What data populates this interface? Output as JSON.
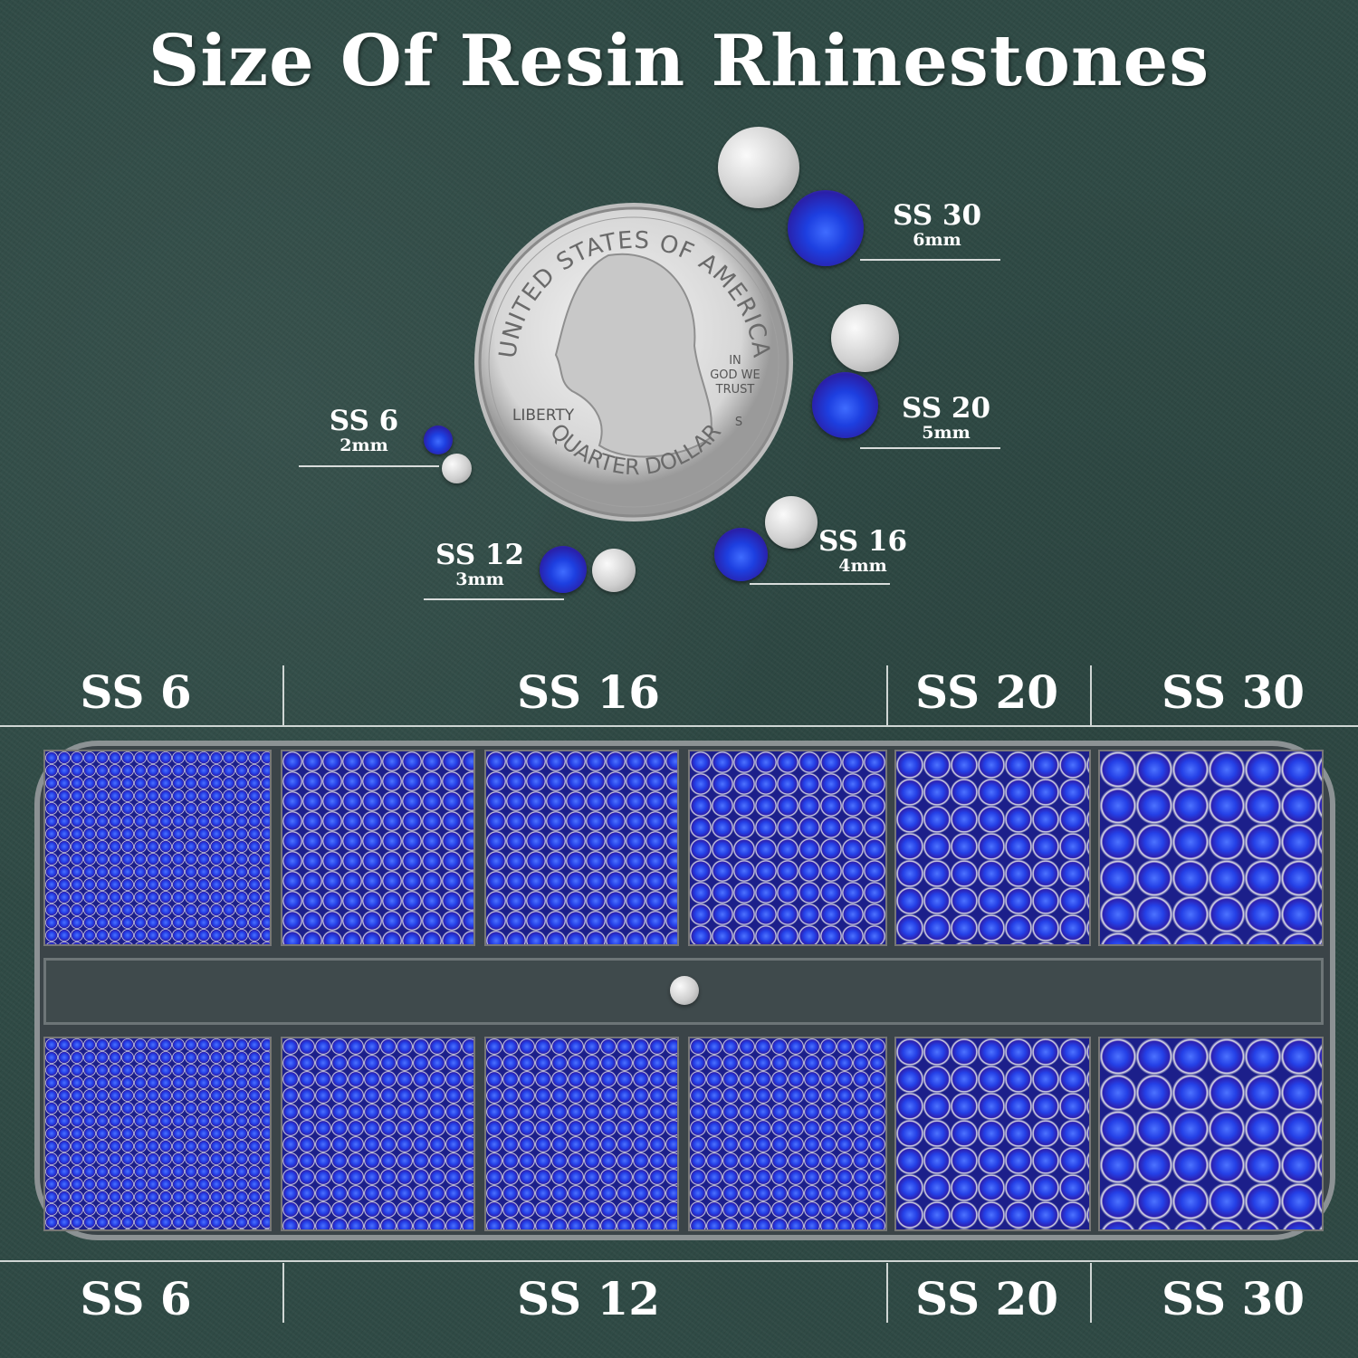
{
  "title": "Size Of Resin Rhinestones",
  "coin": {
    "top_text": "UNITED STATES OF AMERICA",
    "motto_1": "IN",
    "motto_2": "GOD WE",
    "motto_3": "TRUST",
    "liberty": "LIBERTY",
    "mint": "S",
    "bottom_text": "QUARTER DOLLAR"
  },
  "size_labels": [
    {
      "size": "SS 30",
      "mm": "6mm"
    },
    {
      "size": "SS 20",
      "mm": "5mm"
    },
    {
      "size": "SS 16",
      "mm": "4mm"
    },
    {
      "size": "SS 12",
      "mm": "3mm"
    },
    {
      "size": "SS 6",
      "mm": "2mm"
    }
  ],
  "tray_top_labels": [
    "SS 6",
    "SS 16",
    "SS 20",
    "SS 30"
  ],
  "tray_bottom_labels": [
    "SS 6",
    "SS 12",
    "SS 20",
    "SS 30"
  ],
  "colors": {
    "background": "#2f4a45",
    "rhinestone": "#1d3fe0",
    "silver_back": "#cfcfcf"
  }
}
